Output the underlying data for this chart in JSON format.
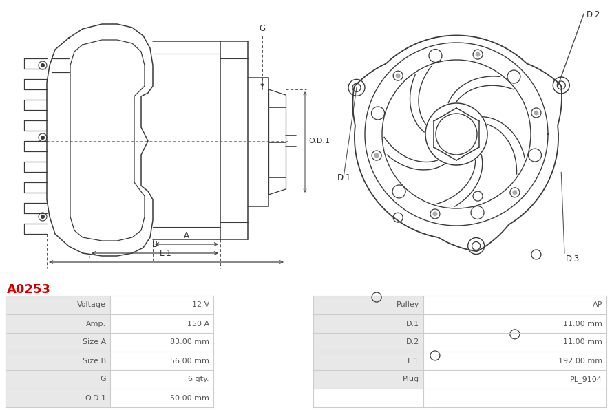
{
  "title": "A0253",
  "title_color": "#cc0000",
  "bg_color": "#ffffff",
  "table_data": [
    [
      "Voltage",
      "12 V",
      "Pulley",
      "AP"
    ],
    [
      "Amp.",
      "150 A",
      "D.1",
      "11.00 mm"
    ],
    [
      "Size A",
      "83.00 mm",
      "D.2",
      "11.00 mm"
    ],
    [
      "Size B",
      "56.00 mm",
      "L.1",
      "192.00 mm"
    ],
    [
      "G",
      "6 qty.",
      "Plug",
      "PL_9104"
    ],
    [
      "O.D.1",
      "50.00 mm",
      "",
      ""
    ]
  ],
  "label_bg": "#e8e8e8",
  "value_bg": "#ffffff",
  "grid_color": "#cccccc",
  "text_color": "#555555",
  "line_color": "#3a3a3a"
}
